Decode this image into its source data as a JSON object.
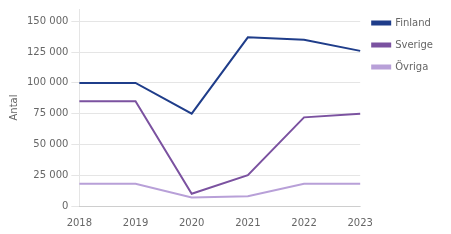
{
  "chart_data": {
    "type": "line",
    "ylabel": "Antal",
    "categories": [
      "2018",
      "2019",
      "2020",
      "2021",
      "2022",
      "2023"
    ],
    "series": [
      {
        "name": "Finland",
        "color": "#1f3d8a",
        "values": [
          100000,
          100000,
          75000,
          137000,
          135000,
          126000
        ]
      },
      {
        "name": "Sverige",
        "color": "#7b52a0",
        "values": [
          85000,
          85000,
          10000,
          25000,
          72000,
          75000
        ]
      },
      {
        "name": "Övriga",
        "color": "#b8a0d8",
        "values": [
          18000,
          18000,
          7000,
          8000,
          18000,
          18000
        ]
      }
    ],
    "ylim": [
      0,
      160000
    ],
    "yticks": [
      0,
      {
        "value": 25000,
        "label": "25 000"
      },
      {
        "value": 50000,
        "label": "50 000"
      },
      {
        "value": 75000,
        "label": "75 000"
      },
      {
        "value": 100000,
        "label": "100 000"
      },
      {
        "value": 125000,
        "label": "125 000"
      },
      {
        "value": 150000,
        "label": "150 000"
      }
    ],
    "grid": "y",
    "legend": "right"
  }
}
